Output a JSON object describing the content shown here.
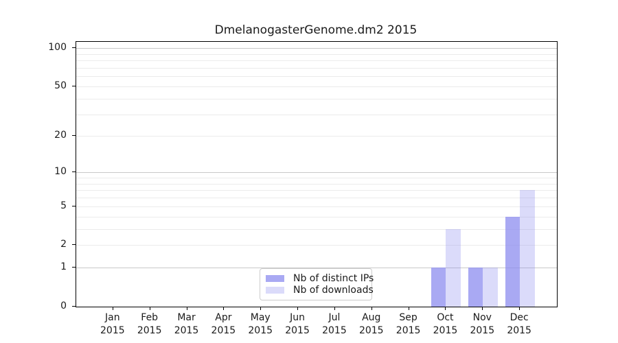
{
  "chart_data": {
    "type": "bar",
    "title": "DmelanogasterGenome.dm2 2015",
    "year": "2015",
    "categories": [
      "Jan",
      "Feb",
      "Mar",
      "Apr",
      "May",
      "Jun",
      "Jul",
      "Aug",
      "Sep",
      "Oct",
      "Nov",
      "Dec"
    ],
    "series": [
      {
        "name": "Nb of distinct IPs",
        "color": "#8888ee",
        "opacity": 0.72,
        "rendered_color": "#aaaaf4",
        "values": [
          0,
          0,
          0,
          0,
          0,
          0,
          0,
          0,
          0,
          1,
          1,
          4
        ]
      },
      {
        "name": "Nb of downloads",
        "color": "#8888ee",
        "opacity": 0.3,
        "rendered_color": "#dbdbf9",
        "values": [
          0,
          0,
          0,
          0,
          0,
          0,
          0,
          0,
          0,
          3,
          1,
          7
        ]
      }
    ],
    "yscale": "log1p",
    "ylim": [
      0,
      112
    ],
    "y_ticks": [
      0,
      1,
      2,
      5,
      10,
      20,
      50,
      100
    ],
    "y_gridlines_major": [
      1,
      10,
      100
    ],
    "y_gridlines_minor": [
      2,
      3,
      4,
      5,
      6,
      7,
      8,
      9,
      20,
      30,
      40,
      50,
      60,
      70,
      80,
      90
    ],
    "xlabel": "",
    "ylabel": "",
    "grid": true,
    "legend_position": "lower-center-inside"
  },
  "colors": {
    "background": "#ffffff",
    "axis": "#000000",
    "text": "#1a1a1a",
    "grid_major": "#c8c8c8",
    "grid_minor": "#ebebeb",
    "legend_border": "#cccccc"
  }
}
